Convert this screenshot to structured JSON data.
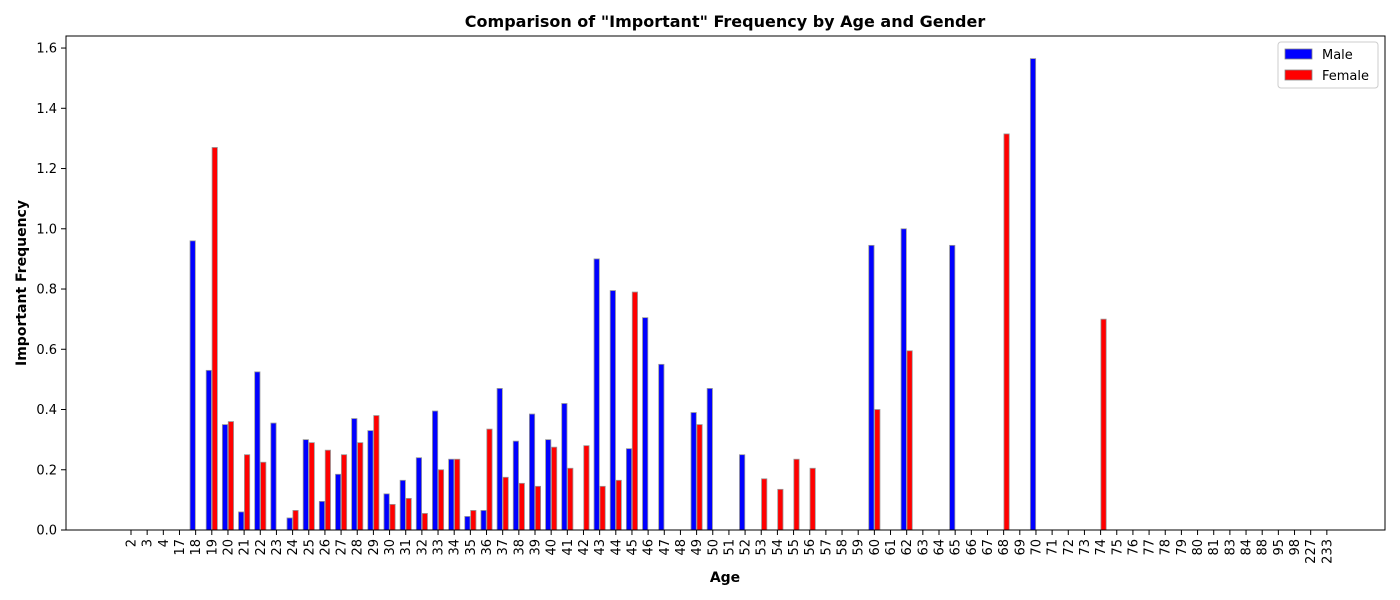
{
  "chart_data": {
    "type": "bar",
    "title": "Comparison of \"Important\" Frequency by Age and Gender",
    "xlabel": "Age",
    "ylabel": "Important Frequency",
    "ylim": [
      0,
      1.64
    ],
    "yticks": [
      "0.0",
      "0.2",
      "0.4",
      "0.6",
      "0.8",
      "1.0",
      "1.2",
      "1.4",
      "1.6"
    ],
    "legend_position": "top-right",
    "categories": [
      "2",
      "3",
      "4",
      "17",
      "18",
      "19",
      "20",
      "21",
      "22",
      "23",
      "24",
      "25",
      "26",
      "27",
      "28",
      "29",
      "30",
      "31",
      "32",
      "33",
      "34",
      "35",
      "36",
      "37",
      "38",
      "39",
      "40",
      "41",
      "42",
      "43",
      "44",
      "45",
      "46",
      "47",
      "48",
      "49",
      "50",
      "51",
      "52",
      "53",
      "54",
      "55",
      "56",
      "57",
      "58",
      "59",
      "60",
      "61",
      "62",
      "63",
      "64",
      "65",
      "66",
      "67",
      "68",
      "69",
      "70",
      "71",
      "72",
      "73",
      "74",
      "75",
      "76",
      "77",
      "78",
      "79",
      "80",
      "81",
      "83",
      "84",
      "88",
      "95",
      "98",
      "227",
      "233"
    ],
    "series": [
      {
        "name": "Male",
        "color": "#0000ff",
        "values": [
          0,
          0,
          0,
          0,
          0.96,
          0.53,
          0.35,
          0.06,
          0.525,
          0.355,
          0.04,
          0.3,
          0.095,
          0.185,
          0.37,
          0.33,
          0.12,
          0.165,
          0.24,
          0.395,
          0.235,
          0.045,
          0.065,
          0.47,
          0.295,
          0.385,
          0.3,
          0.42,
          0,
          0.9,
          0.795,
          0.27,
          0.705,
          0.55,
          0,
          0.39,
          0.47,
          0,
          0.25,
          0,
          0,
          0,
          0,
          0,
          0,
          0,
          0.945,
          0,
          1.0,
          0,
          0,
          0.945,
          0,
          0,
          0,
          0,
          1.565,
          0,
          0,
          0,
          0,
          0,
          0,
          0,
          0,
          0,
          0,
          0,
          0,
          0,
          0,
          0,
          0,
          0,
          0
        ]
      },
      {
        "name": "Female",
        "color": "#ff0000",
        "values": [
          0,
          0,
          0,
          0,
          0,
          1.27,
          0.36,
          0.25,
          0.225,
          0,
          0.065,
          0.29,
          0.265,
          0.25,
          0.29,
          0.38,
          0.085,
          0.105,
          0.055,
          0.2,
          0.235,
          0.065,
          0.335,
          0.175,
          0.155,
          0.145,
          0.275,
          0.205,
          0.28,
          0.145,
          0.165,
          0.79,
          0,
          0,
          0,
          0.35,
          0,
          0,
          0,
          0.17,
          0.135,
          0.235,
          0.205,
          0,
          0,
          0,
          0.4,
          0,
          0.595,
          0,
          0,
          0,
          0,
          0,
          1.315,
          0,
          0,
          0,
          0,
          0,
          0.7,
          0,
          0,
          0,
          0,
          0,
          0,
          0,
          0,
          0,
          0,
          0,
          0,
          0,
          0
        ]
      }
    ]
  }
}
